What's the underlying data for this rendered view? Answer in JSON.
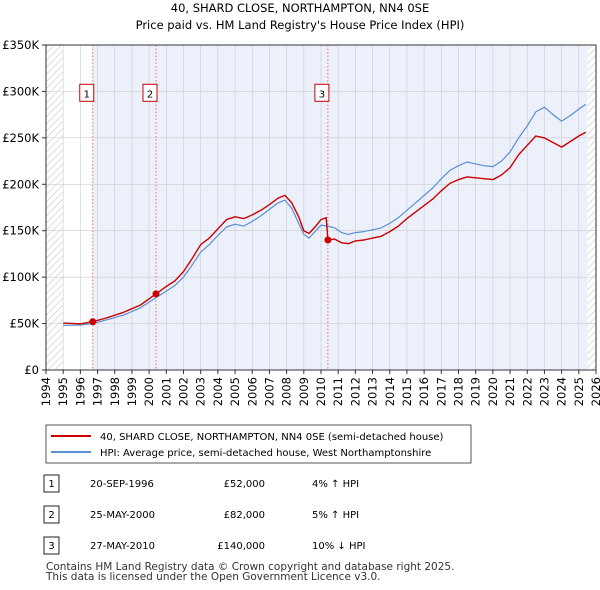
{
  "chart_data": {
    "type": "line",
    "title": "40, SHARD CLOSE, NORTHAMPTON, NN4 0SE",
    "subtitle": "Price paid vs. HM Land Registry's House Price Index (HPI)",
    "xlim": [
      1994,
      2026
    ],
    "ylim": [
      0,
      350000
    ],
    "x_ticks": [
      "1994",
      "1995",
      "1996",
      "1997",
      "1998",
      "1999",
      "2000",
      "2001",
      "2002",
      "2003",
      "2004",
      "2005",
      "2006",
      "2007",
      "2008",
      "2009",
      "2010",
      "2011",
      "2012",
      "2013",
      "2014",
      "2015",
      "2016",
      "2017",
      "2018",
      "2019",
      "2020",
      "2021",
      "2022",
      "2023",
      "2024",
      "2025",
      "2026"
    ],
    "y_ticks": [
      {
        "value": 0,
        "label": "£0"
      },
      {
        "value": 50000,
        "label": "£50K"
      },
      {
        "value": 100000,
        "label": "£100K"
      },
      {
        "value": 150000,
        "label": "£150K"
      },
      {
        "value": 200000,
        "label": "£200K"
      },
      {
        "value": 250000,
        "label": "£250K"
      },
      {
        "value": 300000,
        "label": "£300K"
      },
      {
        "value": 350000,
        "label": "£350K"
      }
    ],
    "data_start": 1995,
    "data_end": 2025.5,
    "series": [
      {
        "name": "40, SHARD CLOSE, NORTHAMPTON, NN4 0SE (semi-detached house)",
        "color": "#cc0000",
        "points": [
          [
            1995.0,
            50500
          ],
          [
            1996.0,
            49800
          ],
          [
            1996.72,
            52000
          ],
          [
            1997.5,
            56000
          ],
          [
            1998.5,
            62000
          ],
          [
            1999.5,
            70000
          ],
          [
            2000.4,
            82000
          ],
          [
            2001.0,
            90000
          ],
          [
            2001.5,
            96000
          ],
          [
            2002.0,
            106000
          ],
          [
            2002.5,
            120000
          ],
          [
            2003.0,
            135000
          ],
          [
            2003.5,
            142000
          ],
          [
            2004.0,
            152000
          ],
          [
            2004.5,
            162000
          ],
          [
            2005.0,
            165000
          ],
          [
            2005.5,
            163000
          ],
          [
            2006.0,
            167000
          ],
          [
            2006.5,
            172000
          ],
          [
            2007.0,
            178000
          ],
          [
            2007.5,
            185000
          ],
          [
            2007.9,
            188000
          ],
          [
            2008.3,
            180000
          ],
          [
            2008.7,
            165000
          ],
          [
            2009.0,
            150000
          ],
          [
            2009.3,
            147000
          ],
          [
            2009.7,
            155000
          ],
          [
            2010.0,
            162000
          ],
          [
            2010.3,
            164000
          ],
          [
            2010.4,
            140000
          ],
          [
            2010.8,
            141000
          ],
          [
            2011.2,
            137000
          ],
          [
            2011.6,
            136000
          ],
          [
            2012.0,
            139000
          ],
          [
            2012.5,
            140000
          ],
          [
            2013.0,
            142000
          ],
          [
            2013.5,
            144000
          ],
          [
            2014.0,
            149000
          ],
          [
            2014.5,
            155000
          ],
          [
            2015.0,
            163000
          ],
          [
            2015.5,
            170000
          ],
          [
            2016.0,
            177000
          ],
          [
            2016.5,
            184000
          ],
          [
            2017.0,
            193000
          ],
          [
            2017.5,
            201000
          ],
          [
            2018.0,
            205000
          ],
          [
            2018.5,
            208000
          ],
          [
            2019.0,
            207000
          ],
          [
            2019.5,
            206000
          ],
          [
            2020.0,
            205000
          ],
          [
            2020.5,
            210000
          ],
          [
            2021.0,
            218000
          ],
          [
            2021.5,
            232000
          ],
          [
            2022.0,
            242000
          ],
          [
            2022.5,
            252000
          ],
          [
            2023.0,
            250000
          ],
          [
            2023.5,
            245000
          ],
          [
            2024.0,
            240000
          ],
          [
            2024.5,
            246000
          ],
          [
            2025.0,
            252000
          ],
          [
            2025.4,
            256000
          ]
        ]
      },
      {
        "name": "HPI: Average price, semi-detached house, West Northamptonshire",
        "color": "#5b8fd4",
        "points": [
          [
            1995.0,
            48000
          ],
          [
            1996.0,
            48500
          ],
          [
            1996.72,
            50000
          ],
          [
            1997.5,
            54000
          ],
          [
            1998.5,
            59000
          ],
          [
            1999.5,
            67000
          ],
          [
            2000.4,
            78000
          ],
          [
            2001.0,
            85000
          ],
          [
            2001.5,
            91000
          ],
          [
            2002.0,
            100000
          ],
          [
            2002.5,
            113000
          ],
          [
            2003.0,
            127000
          ],
          [
            2003.5,
            135000
          ],
          [
            2004.0,
            145000
          ],
          [
            2004.5,
            154000
          ],
          [
            2005.0,
            157000
          ],
          [
            2005.5,
            155000
          ],
          [
            2006.0,
            160000
          ],
          [
            2006.5,
            166000
          ],
          [
            2007.0,
            173000
          ],
          [
            2007.5,
            180000
          ],
          [
            2007.9,
            183000
          ],
          [
            2008.3,
            174000
          ],
          [
            2008.7,
            158000
          ],
          [
            2009.0,
            146000
          ],
          [
            2009.3,
            142000
          ],
          [
            2009.7,
            150000
          ],
          [
            2010.0,
            156000
          ],
          [
            2010.4,
            155000
          ],
          [
            2010.8,
            153000
          ],
          [
            2011.2,
            148000
          ],
          [
            2011.6,
            146000
          ],
          [
            2012.0,
            148000
          ],
          [
            2012.5,
            149000
          ],
          [
            2013.0,
            151000
          ],
          [
            2013.5,
            153000
          ],
          [
            2014.0,
            158000
          ],
          [
            2014.5,
            164000
          ],
          [
            2015.0,
            172000
          ],
          [
            2015.5,
            180000
          ],
          [
            2016.0,
            188000
          ],
          [
            2016.5,
            196000
          ],
          [
            2017.0,
            206000
          ],
          [
            2017.5,
            215000
          ],
          [
            2018.0,
            220000
          ],
          [
            2018.5,
            224000
          ],
          [
            2019.0,
            222000
          ],
          [
            2019.5,
            220000
          ],
          [
            2020.0,
            219000
          ],
          [
            2020.5,
            225000
          ],
          [
            2021.0,
            235000
          ],
          [
            2021.5,
            250000
          ],
          [
            2022.0,
            263000
          ],
          [
            2022.5,
            278000
          ],
          [
            2023.0,
            283000
          ],
          [
            2023.5,
            275000
          ],
          [
            2024.0,
            268000
          ],
          [
            2024.5,
            274000
          ],
          [
            2025.0,
            281000
          ],
          [
            2025.4,
            286000
          ]
        ]
      }
    ],
    "sales": [
      {
        "num": "1",
        "x": 1996.72,
        "price": 52000
      },
      {
        "num": "2",
        "x": 2000.4,
        "price": 82000
      },
      {
        "num": "3",
        "x": 2010.4,
        "price": 140000
      }
    ]
  },
  "legend": {
    "items": [
      {
        "label": "40, SHARD CLOSE, NORTHAMPTON, NN4 0SE (semi-detached house)",
        "color": "#cc0000"
      },
      {
        "label": "HPI: Average price, semi-detached house, West Northamptonshire",
        "color": "#5b8fd4"
      }
    ]
  },
  "table": {
    "rows": [
      {
        "num": "1",
        "date": "20-SEP-1996",
        "price": "£52,000",
        "hpi": "4% ↑ HPI"
      },
      {
        "num": "2",
        "date": "25-MAY-2000",
        "price": "£82,000",
        "hpi": "5% ↑ HPI"
      },
      {
        "num": "3",
        "date": "27-MAY-2010",
        "price": "£140,000",
        "hpi": "10% ↓ HPI"
      }
    ]
  },
  "footer": {
    "line1": "Contains HM Land Registry data © Crown copyright and database right 2025.",
    "line2": "This data is licensed under the Open Government Licence v3.0."
  }
}
